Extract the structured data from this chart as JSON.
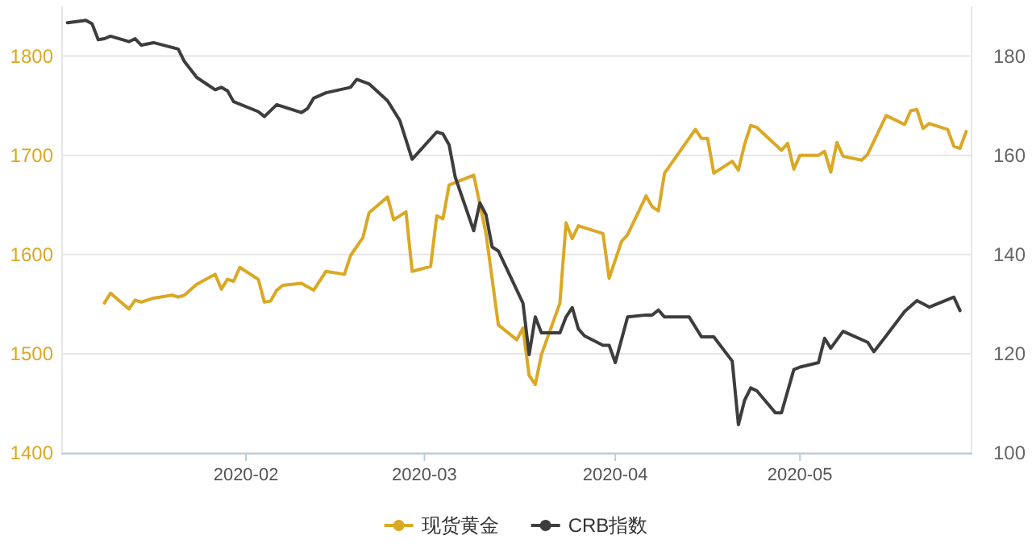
{
  "chart_data": {
    "type": "line",
    "xlim": [
      "2020-01-02",
      "2020-05-29"
    ],
    "xticks": [
      {
        "value": "2020-02-01",
        "label": "2020-02"
      },
      {
        "value": "2020-03-01",
        "label": "2020-03"
      },
      {
        "value": "2020-04-01",
        "label": "2020-04"
      },
      {
        "value": "2020-05-01",
        "label": "2020-05"
      }
    ],
    "ylim": [
      1400,
      1850
    ],
    "yticks": [
      1400,
      1500,
      1600,
      1700,
      1800
    ],
    "y2lim": [
      100,
      190
    ],
    "y2ticks": [
      100,
      120,
      140,
      160,
      180
    ],
    "grid": "y",
    "legend": "bottom",
    "series": [
      {
        "name": "现货黄金",
        "color": "#dba824",
        "x": [
          "2020-01-09",
          "2020-01-10",
          "2020-01-13",
          "2020-01-14",
          "2020-01-15",
          "2020-01-17",
          "2020-01-20",
          "2020-01-21",
          "2020-01-22",
          "2020-01-24",
          "2020-01-27",
          "2020-01-28",
          "2020-01-29",
          "2020-01-30",
          "2020-01-31",
          "2020-02-03",
          "2020-02-04",
          "2020-02-05",
          "2020-02-06",
          "2020-02-07",
          "2020-02-10",
          "2020-02-12",
          "2020-02-14",
          "2020-02-17",
          "2020-02-18",
          "2020-02-20",
          "2020-02-21",
          "2020-02-24",
          "2020-02-25",
          "2020-02-27",
          "2020-02-28",
          "2020-03-02",
          "2020-03-03",
          "2020-03-04",
          "2020-03-05",
          "2020-03-09",
          "2020-03-11",
          "2020-03-13",
          "2020-03-16",
          "2020-03-17",
          "2020-03-18",
          "2020-03-19",
          "2020-03-20",
          "2020-03-23",
          "2020-03-24",
          "2020-03-25",
          "2020-03-26",
          "2020-03-30",
          "2020-03-31",
          "2020-04-02",
          "2020-04-03",
          "2020-04-06",
          "2020-04-07",
          "2020-04-08",
          "2020-04-09",
          "2020-04-14",
          "2020-04-15",
          "2020-04-16",
          "2020-04-17",
          "2020-04-20",
          "2020-04-21",
          "2020-04-22",
          "2020-04-23",
          "2020-04-24",
          "2020-04-28",
          "2020-04-29",
          "2020-04-30",
          "2020-05-01",
          "2020-05-04",
          "2020-05-05",
          "2020-05-06",
          "2020-05-07",
          "2020-05-08",
          "2020-05-11",
          "2020-05-12",
          "2020-05-15",
          "2020-05-18",
          "2020-05-19",
          "2020-05-20",
          "2020-05-21",
          "2020-05-22",
          "2020-05-25",
          "2020-05-26",
          "2020-05-27",
          "2020-05-28"
        ],
        "values": [
          1551,
          1561,
          1545,
          1554,
          1552,
          1556,
          1559,
          1557,
          1559,
          1570,
          1580,
          1565,
          1575,
          1573,
          1587,
          1575,
          1552,
          1553,
          1564,
          1569,
          1571,
          1564,
          1583,
          1580,
          1599,
          1617,
          1642,
          1658,
          1635,
          1643,
          1583,
          1588,
          1639,
          1636,
          1670,
          1680,
          1621,
          1529,
          1514,
          1526,
          1478,
          1469,
          1499,
          1551,
          1632,
          1616,
          1629,
          1621,
          1576,
          1613,
          1620,
          1659,
          1648,
          1644,
          1682,
          1726,
          1717,
          1717,
          1682,
          1694,
          1685,
          1711,
          1730,
          1728,
          1705,
          1712,
          1686,
          1700,
          1700,
          1704,
          1683,
          1713,
          1699,
          1695,
          1701,
          1740,
          1731,
          1745,
          1746,
          1727,
          1732,
          1726,
          1709,
          1707,
          1724
        ]
      },
      {
        "name": "CRB指数",
        "color": "#3d3d3d",
        "axis": "y2",
        "x": [
          "2020-01-03",
          "2020-01-06",
          "2020-01-07",
          "2020-01-08",
          "2020-01-09",
          "2020-01-10",
          "2020-01-13",
          "2020-01-14",
          "2020-01-15",
          "2020-01-17",
          "2020-01-21",
          "2020-01-22",
          "2020-01-24",
          "2020-01-27",
          "2020-01-28",
          "2020-01-29",
          "2020-01-30",
          "2020-02-03",
          "2020-02-04",
          "2020-02-06",
          "2020-02-10",
          "2020-02-11",
          "2020-02-12",
          "2020-02-14",
          "2020-02-18",
          "2020-02-19",
          "2020-02-21",
          "2020-02-24",
          "2020-02-26",
          "2020-02-28",
          "2020-03-03",
          "2020-03-04",
          "2020-03-05",
          "2020-03-06",
          "2020-03-09",
          "2020-03-10",
          "2020-03-11",
          "2020-03-12",
          "2020-03-13",
          "2020-03-17",
          "2020-03-18",
          "2020-03-19",
          "2020-03-20",
          "2020-03-23",
          "2020-03-24",
          "2020-03-25",
          "2020-03-26",
          "2020-03-27",
          "2020-03-30",
          "2020-03-31",
          "2020-04-01",
          "2020-04-03",
          "2020-04-06",
          "2020-04-07",
          "2020-04-08",
          "2020-04-09",
          "2020-04-13",
          "2020-04-15",
          "2020-04-17",
          "2020-04-20",
          "2020-04-21",
          "2020-04-22",
          "2020-04-23",
          "2020-04-24",
          "2020-04-27",
          "2020-04-28",
          "2020-04-30",
          "2020-05-01",
          "2020-05-04",
          "2020-05-05",
          "2020-05-06",
          "2020-05-08",
          "2020-05-12",
          "2020-05-13",
          "2020-05-15",
          "2020-05-18",
          "2020-05-20",
          "2020-05-22",
          "2020-05-26",
          "2020-05-27"
        ],
        "values": [
          186.7,
          187.2,
          186.5,
          183.3,
          183.5,
          184.0,
          182.9,
          183.5,
          182.2,
          182.7,
          181.4,
          178.9,
          175.7,
          173.2,
          173.7,
          173.0,
          170.8,
          168.8,
          167.8,
          170.2,
          168.6,
          169.4,
          171.5,
          172.6,
          173.7,
          175.3,
          174.4,
          171.0,
          167.0,
          159.2,
          164.7,
          164.3,
          162.1,
          155.6,
          144.8,
          150.4,
          148.0,
          141.5,
          140.7,
          130.2,
          119.8,
          127.4,
          124.2,
          124.2,
          127.4,
          129.3,
          125.0,
          123.6,
          121.7,
          121.7,
          118.2,
          127.4,
          127.8,
          127.8,
          128.8,
          127.4,
          127.4,
          123.4,
          123.4,
          118.5,
          105.7,
          110.6,
          113.1,
          112.5,
          108.1,
          108.1,
          116.8,
          117.3,
          118.2,
          123.1,
          121.1,
          124.5,
          122.3,
          120.4,
          123.6,
          128.5,
          130.7,
          129.4,
          131.4,
          128.7
        ]
      }
    ]
  }
}
